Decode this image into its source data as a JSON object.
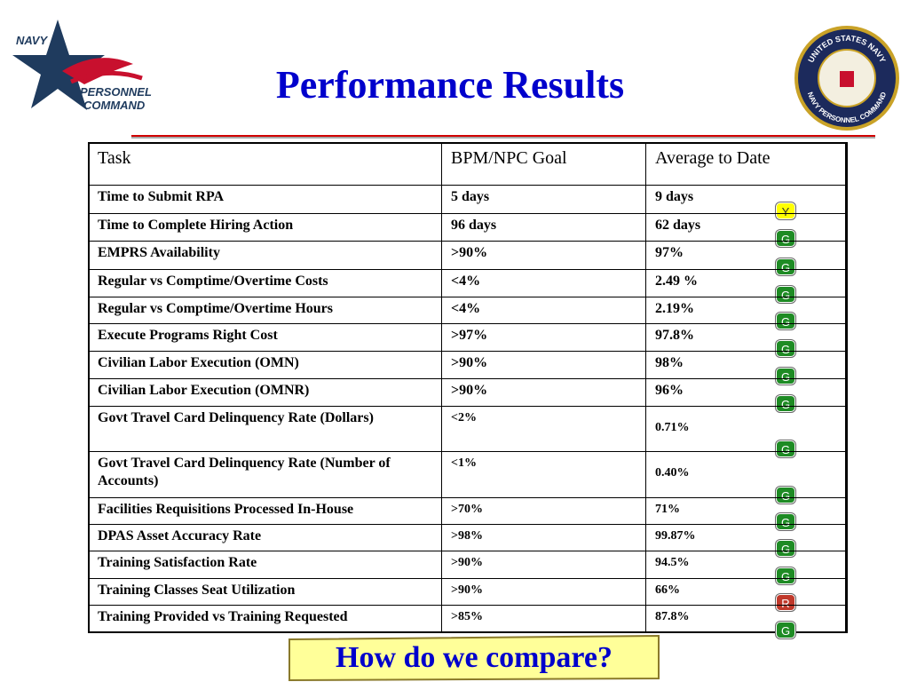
{
  "header": {
    "title": "Performance Results"
  },
  "logo": {
    "lines": [
      "NAVY",
      "PERSONNEL",
      "COMMAND"
    ]
  },
  "seal": {
    "texts": [
      "UNITED STATES NAVY",
      "NAVY PERSONNEL COMMAND"
    ]
  },
  "table": {
    "columns": [
      "Task",
      "BPM/NPC Goal",
      "Average to Date"
    ],
    "rows": [
      [
        "Time to Submit RPA",
        "5 days",
        "9 days",
        "Y"
      ],
      [
        "Time to Complete Hiring Action",
        "96 days",
        "62 days",
        "G"
      ],
      [
        "EMPRS Availability",
        ">90%",
        "97%",
        "G"
      ],
      [
        "Regular vs Comptime/Overtime Costs",
        "<4%",
        "2.49 %",
        "G"
      ],
      [
        "Regular vs Comptime/Overtime Hours",
        "<4%",
        "2.19%",
        "G"
      ],
      [
        "Execute Programs Right Cost",
        ">97%",
        "97.8%",
        "G"
      ],
      [
        "Civilian Labor Execution (OMN)",
        ">90%",
        "98%",
        "G"
      ],
      [
        "Civilian Labor Execution (OMNR)",
        ">90%",
        "96%",
        "G"
      ],
      [
        "Govt Travel Card Delinquency Rate (Dollars)",
        "<2%",
        "0.71%",
        "G"
      ],
      [
        "Govt Travel Card Delinquency Rate (Number of Accounts)",
        "<1%",
        "0.40%",
        "G"
      ],
      [
        "Facilities Requisitions Processed In-House",
        ">70%",
        "71%",
        "G"
      ],
      [
        "DPAS Asset Accuracy Rate",
        ">98%",
        "99.87%",
        "G"
      ],
      [
        "Training Satisfaction Rate",
        ">90%",
        "94.5%",
        "G"
      ],
      [
        "Training Classes Seat Utilization",
        ">90%",
        "66%",
        "R"
      ],
      [
        "Training Provided vs Training Requested",
        ">85%",
        "87.8%",
        "G"
      ]
    ]
  },
  "footer": {
    "button": "How do we compare?"
  }
}
